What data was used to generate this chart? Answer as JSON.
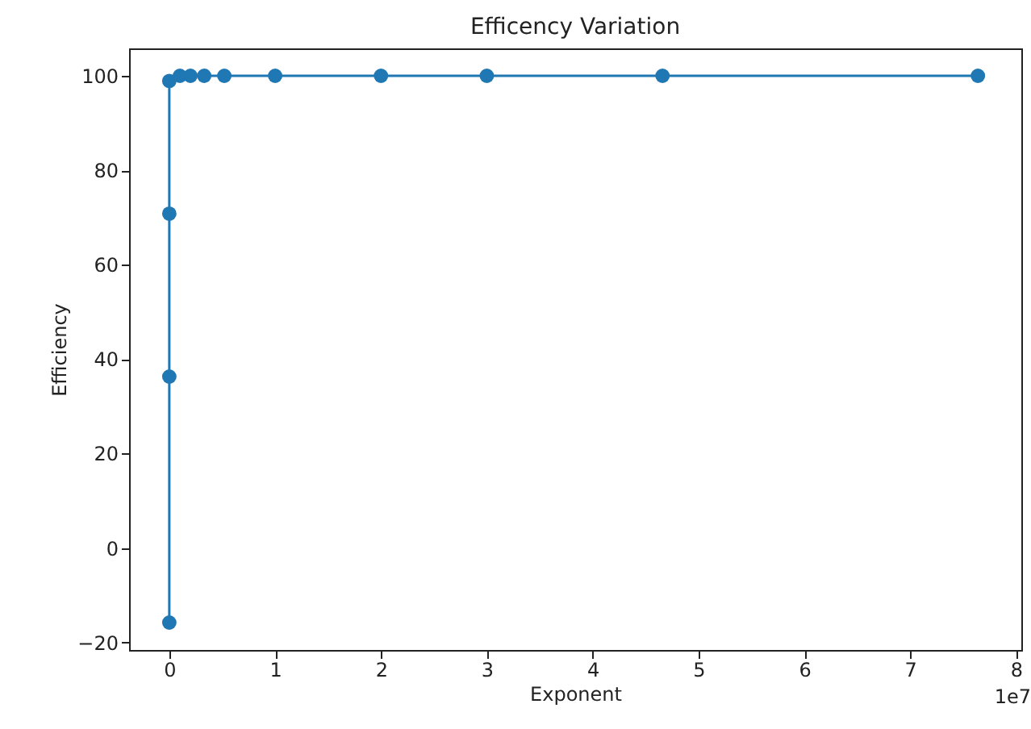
{
  "chart_data": {
    "type": "line",
    "title": "Efficency Variation",
    "xlabel": "Exponent",
    "ylabel": "Efficiency",
    "annotations": [
      "1e7"
    ],
    "x": [
      0,
      0,
      0,
      0,
      0.1,
      0.2,
      0.33,
      0.52,
      1.0,
      2.0,
      3.0,
      4.66,
      7.64
    ],
    "series": [
      {
        "color": "#1f77b4",
        "values": [
          -15.8,
          36.3,
          70.8,
          98.9,
          100,
          100,
          100,
          100,
          100,
          100,
          100,
          100,
          100
        ]
      }
    ],
    "xlim": [
      -0.38,
      8.05
    ],
    "xticks": [
      0,
      1,
      2,
      3,
      4,
      5,
      6,
      7,
      8
    ],
    "ylim": [
      -21.6,
      105.8
    ],
    "yticks": [
      -20,
      0,
      20,
      40,
      60,
      80,
      100
    ],
    "grid": false,
    "marker": "circle",
    "line_style": "solid"
  }
}
